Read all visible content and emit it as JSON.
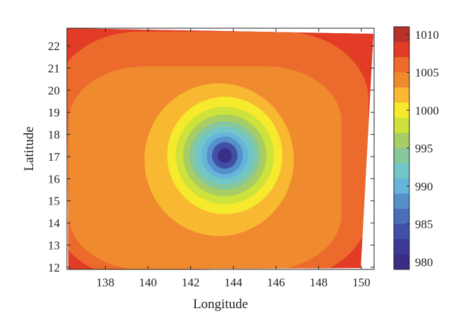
{
  "chart_data": {
    "type": "contour",
    "xlabel": "Longitude",
    "ylabel": "Latitude",
    "xlim": [
      136.2,
      150.6
    ],
    "ylim": [
      11.9,
      22.8
    ],
    "x_ticks": [
      138,
      140,
      142,
      144,
      146,
      148,
      150
    ],
    "y_ticks": [
      12,
      13,
      14,
      15,
      16,
      17,
      18,
      19,
      20,
      21,
      22
    ],
    "center": {
      "longitude": 143.6,
      "latitude": 17.05,
      "value": 980
    },
    "colorbar": {
      "min": 979,
      "max": 1011,
      "ticks": [
        980,
        985,
        990,
        995,
        1000,
        1005,
        1010
      ],
      "levels": [
        {
          "from": 979,
          "to": 981,
          "color": "#3a2d86"
        },
        {
          "from": 981,
          "to": 983,
          "color": "#3c3a96"
        },
        {
          "from": 983,
          "to": 985,
          "color": "#4150a6"
        },
        {
          "from": 985,
          "to": 987,
          "color": "#4a6fb8"
        },
        {
          "from": 987,
          "to": 989,
          "color": "#5590cb"
        },
        {
          "from": 989,
          "to": 991,
          "color": "#66b4da"
        },
        {
          "from": 991,
          "to": 993,
          "color": "#72c6c8"
        },
        {
          "from": 993,
          "to": 995,
          "color": "#86c79d"
        },
        {
          "from": 995,
          "to": 997,
          "color": "#a8cd64"
        },
        {
          "from": 997,
          "to": 999,
          "color": "#cde23a"
        },
        {
          "from": 999,
          "to": 1001,
          "color": "#f6ea2c"
        },
        {
          "from": 1001,
          "to": 1003,
          "color": "#f8b832"
        },
        {
          "from": 1003,
          "to": 1005,
          "color": "#f08a2e"
        },
        {
          "from": 1005,
          "to": 1007,
          "color": "#ec6a2c"
        },
        {
          "from": 1007,
          "to": 1009,
          "color": "#e23b26"
        },
        {
          "from": 1009,
          "to": 1011,
          "color": "#b8312a"
        }
      ]
    },
    "contour_levels": [
      {
        "level": 1007,
        "color": "#e23b26",
        "radius_lon": 8.6,
        "radius_lat": 6.9
      },
      {
        "level": 1005,
        "color": "#ec6a2c",
        "radius_lon": 7.4,
        "radius_lat": 5.6
      },
      {
        "level": 1003,
        "color": "#f08a2e",
        "radius_lon": 6.4,
        "radius_lat": 4.6
      },
      {
        "level": 1001,
        "color": "#f8b832",
        "radius_lon": 3.5,
        "radius_lat": 3.45
      },
      {
        "level": 999,
        "color": "#f6ea2c",
        "radius_lon": 2.7,
        "radius_lat": 2.65
      },
      {
        "level": 997,
        "color": "#cde23a",
        "radius_lon": 2.3,
        "radius_lat": 2.2
      },
      {
        "level": 995,
        "color": "#a8cd64",
        "radius_lon": 1.95,
        "radius_lat": 1.85
      },
      {
        "level": 993,
        "color": "#86c79d",
        "radius_lon": 1.65,
        "radius_lat": 1.55
      },
      {
        "level": 991,
        "color": "#72c6c8",
        "radius_lon": 1.4,
        "radius_lat": 1.3
      },
      {
        "level": 989,
        "color": "#66b4da",
        "radius_lon": 1.1,
        "radius_lat": 1.05
      },
      {
        "level": 987,
        "color": "#5590cb",
        "radius_lon": 0.85,
        "radius_lat": 0.85
      },
      {
        "level": 985,
        "color": "#4150a6",
        "radius_lon": 0.6,
        "radius_lat": 0.6
      },
      {
        "level": 983,
        "color": "#3c3a96",
        "radius_lon": 0.35,
        "radius_lat": 0.35
      }
    ],
    "background_color": "#e23b26",
    "corner_color": "#b8312a"
  }
}
